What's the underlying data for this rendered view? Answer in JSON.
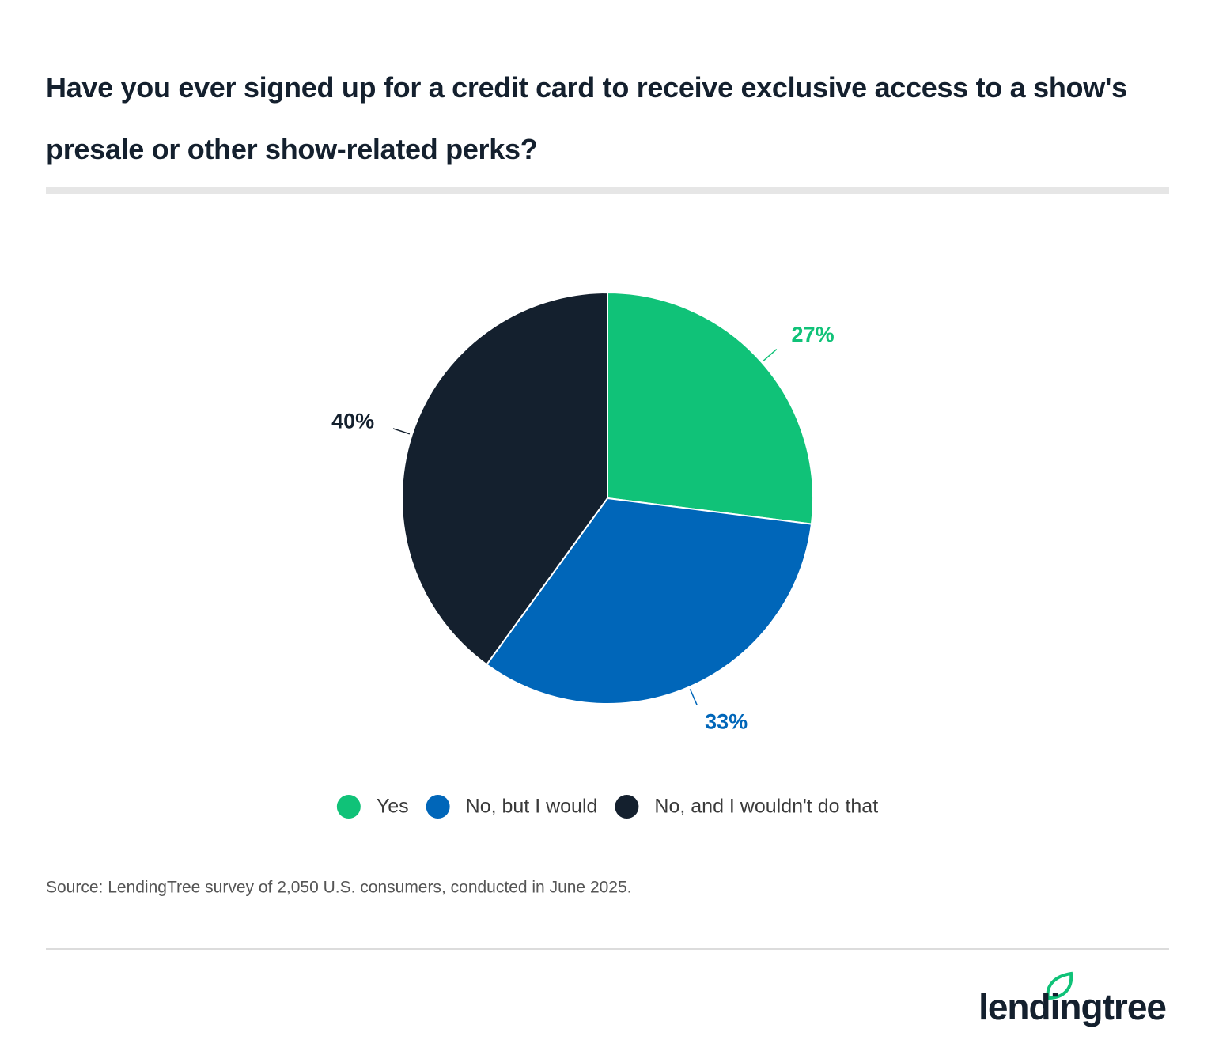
{
  "chart_data": {
    "type": "pie",
    "title": "Have you ever signed up for a credit card to receive exclusive access to a show's presale or other show-related perks?",
    "categories": [
      "Yes",
      "No, but I would",
      "No, and I wouldn't do that"
    ],
    "values": [
      27,
      33,
      40
    ],
    "value_labels": [
      "27%",
      "33%",
      "40%"
    ],
    "colors": [
      "#10c278",
      "#0066b9",
      "#14202e"
    ],
    "source": "Source: LendingTree survey of 2,050 U.S. consumers, conducted in June 2025."
  },
  "brand": "lendingtree"
}
